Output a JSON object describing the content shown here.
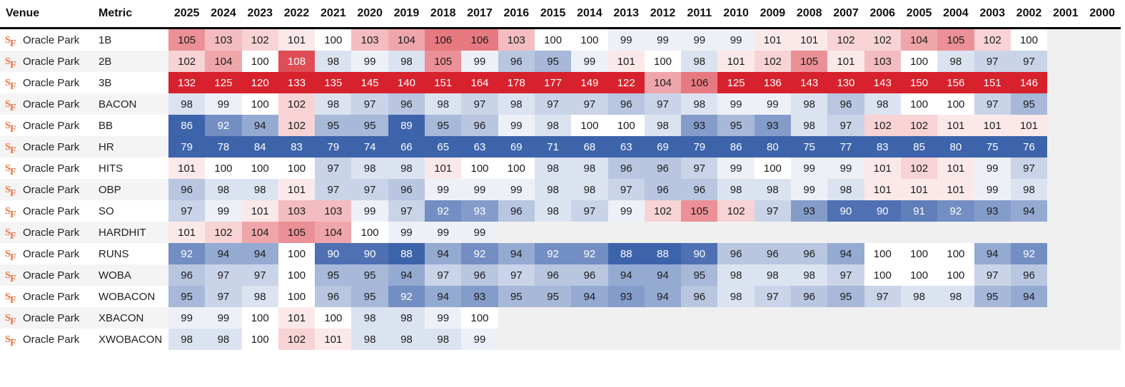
{
  "table": {
    "venue_header": "Venue",
    "metric_header": "Metric",
    "venue_name": "Oracle Park",
    "years": [
      "2025",
      "2024",
      "2023",
      "2022",
      "2021",
      "2020",
      "2019",
      "2018",
      "2017",
      "2016",
      "2015",
      "2014",
      "2013",
      "2012",
      "2011",
      "2010",
      "2009",
      "2008",
      "2007",
      "2006",
      "2005",
      "2004",
      "2003",
      "2002",
      "2001",
      "2000"
    ],
    "rows": [
      {
        "metric": "1B",
        "values": [
          105,
          103,
          102,
          101,
          100,
          103,
          104,
          106,
          106,
          103,
          100,
          100,
          99,
          99,
          99,
          99,
          101,
          101,
          102,
          102,
          104,
          105,
          102,
          100,
          null,
          null
        ]
      },
      {
        "metric": "2B",
        "values": [
          102,
          104,
          100,
          108,
          98,
          99,
          98,
          105,
          99,
          96,
          95,
          99,
          101,
          100,
          98,
          101,
          102,
          105,
          101,
          103,
          100,
          98,
          97,
          97,
          null,
          null
        ]
      },
      {
        "metric": "3B",
        "values": [
          132,
          125,
          120,
          133,
          135,
          145,
          140,
          151,
          164,
          178,
          177,
          149,
          122,
          104,
          106,
          125,
          136,
          143,
          130,
          143,
          150,
          156,
          151,
          146,
          null,
          null
        ]
      },
      {
        "metric": "BACON",
        "values": [
          98,
          99,
          100,
          102,
          98,
          97,
          96,
          98,
          97,
          98,
          97,
          97,
          96,
          97,
          98,
          99,
          99,
          98,
          96,
          98,
          100,
          100,
          97,
          95,
          null,
          null
        ]
      },
      {
        "metric": "BB",
        "values": [
          86,
          92,
          94,
          102,
          95,
          95,
          89,
          95,
          96,
          99,
          98,
          100,
          100,
          98,
          93,
          95,
          93,
          98,
          97,
          102,
          102,
          101,
          101,
          101,
          null,
          null
        ]
      },
      {
        "metric": "HR",
        "values": [
          79,
          78,
          84,
          83,
          79,
          74,
          66,
          65,
          63,
          69,
          71,
          68,
          63,
          69,
          79,
          86,
          80,
          75,
          77,
          83,
          85,
          80,
          75,
          76,
          null,
          null
        ]
      },
      {
        "metric": "HITS",
        "values": [
          101,
          100,
          100,
          100,
          97,
          98,
          98,
          101,
          100,
          100,
          98,
          98,
          96,
          96,
          97,
          99,
          100,
          99,
          99,
          101,
          102,
          101,
          99,
          97,
          null,
          null
        ]
      },
      {
        "metric": "OBP",
        "values": [
          96,
          98,
          98,
          101,
          97,
          97,
          96,
          99,
          99,
          99,
          98,
          98,
          97,
          96,
          96,
          98,
          98,
          99,
          98,
          101,
          101,
          101,
          99,
          98,
          null,
          null
        ]
      },
      {
        "metric": "SO",
        "values": [
          97,
          99,
          101,
          103,
          103,
          99,
          97,
          92,
          93,
          96,
          98,
          97,
          99,
          102,
          105,
          102,
          97,
          93,
          90,
          90,
          91,
          92,
          93,
          94,
          null,
          null
        ]
      },
      {
        "metric": "HARDHIT",
        "values": [
          101,
          102,
          104,
          105,
          104,
          100,
          99,
          99,
          99,
          null,
          null,
          null,
          null,
          null,
          null,
          null,
          null,
          null,
          null,
          null,
          null,
          null,
          null,
          null,
          null,
          null
        ]
      },
      {
        "metric": "RUNS",
        "values": [
          92,
          94,
          94,
          100,
          90,
          90,
          88,
          94,
          92,
          94,
          92,
          92,
          88,
          88,
          90,
          96,
          96,
          96,
          94,
          100,
          100,
          100,
          94,
          92,
          null,
          null
        ]
      },
      {
        "metric": "WOBA",
        "values": [
          96,
          97,
          97,
          100,
          95,
          95,
          94,
          97,
          96,
          97,
          96,
          96,
          94,
          94,
          95,
          98,
          98,
          98,
          97,
          100,
          100,
          100,
          97,
          96,
          null,
          null
        ]
      },
      {
        "metric": "WOBACON",
        "values": [
          95,
          97,
          98,
          100,
          96,
          95,
          92,
          94,
          93,
          95,
          95,
          94,
          93,
          94,
          96,
          98,
          97,
          96,
          95,
          97,
          98,
          98,
          95,
          94,
          null,
          null
        ]
      },
      {
        "metric": "XBACON",
        "values": [
          99,
          99,
          100,
          101,
          100,
          98,
          98,
          99,
          100,
          null,
          null,
          null,
          null,
          null,
          null,
          null,
          null,
          null,
          null,
          null,
          null,
          null,
          null,
          null,
          null,
          null
        ]
      },
      {
        "metric": "XWOBACON",
        "values": [
          98,
          98,
          100,
          102,
          101,
          98,
          98,
          98,
          99,
          null,
          null,
          null,
          null,
          null,
          null,
          null,
          null,
          null,
          null,
          null,
          null,
          null,
          null,
          null,
          null,
          null
        ]
      }
    ],
    "white_text_overrides": [
      {
        "metric": "SO",
        "year": "2017"
      }
    ]
  },
  "colors": {
    "max_red": "#d7212d",
    "max_blue": "#3d63ab",
    "neutral": "#ffffff",
    "empty_bg": "#f0f0f1",
    "stripe_bg": "#f4f4f5",
    "header_border": "#000000",
    "logo_orange": "#f4703a",
    "white_text": "#ffffff",
    "dark_text": "#1b1b1b"
  },
  "icons": {
    "team_logo": "SF"
  }
}
